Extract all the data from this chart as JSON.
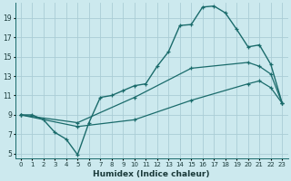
{
  "xlabel": "Humidex (Indice chaleur)",
  "background_color": "#cce9ee",
  "grid_color": "#aacdd5",
  "line_color": "#1a6b6b",
  "xlim": [
    -0.5,
    23.5
  ],
  "ylim": [
    4.5,
    20.5
  ],
  "xticks": [
    0,
    1,
    2,
    3,
    4,
    5,
    6,
    7,
    8,
    9,
    10,
    11,
    12,
    13,
    14,
    15,
    16,
    17,
    18,
    19,
    20,
    21,
    22,
    23
  ],
  "yticks": [
    5,
    7,
    9,
    11,
    13,
    15,
    17,
    19
  ],
  "curve1_x": [
    0,
    1,
    2,
    3,
    4,
    5,
    6,
    7,
    8,
    9,
    10,
    11,
    12,
    13,
    14,
    15,
    16,
    17,
    18,
    19,
    20,
    21,
    22,
    23
  ],
  "curve1_y": [
    9,
    9,
    8.5,
    7.2,
    6.5,
    4.9,
    8.2,
    10.8,
    11.0,
    11.5,
    12.0,
    12.2,
    14.0,
    15.5,
    18.2,
    18.3,
    20.1,
    20.2,
    19.5,
    17.8,
    16.0,
    16.2,
    14.2,
    10.2
  ],
  "curve2_x": [
    0,
    5,
    10,
    15,
    20,
    21,
    22,
    23
  ],
  "curve2_y": [
    9,
    8.2,
    10.8,
    13.8,
    14.4,
    14.0,
    13.2,
    10.2
  ],
  "curve3_x": [
    0,
    5,
    10,
    15,
    20,
    21,
    22,
    23
  ],
  "curve3_y": [
    9,
    7.8,
    8.5,
    10.5,
    12.2,
    12.5,
    11.8,
    10.2
  ]
}
